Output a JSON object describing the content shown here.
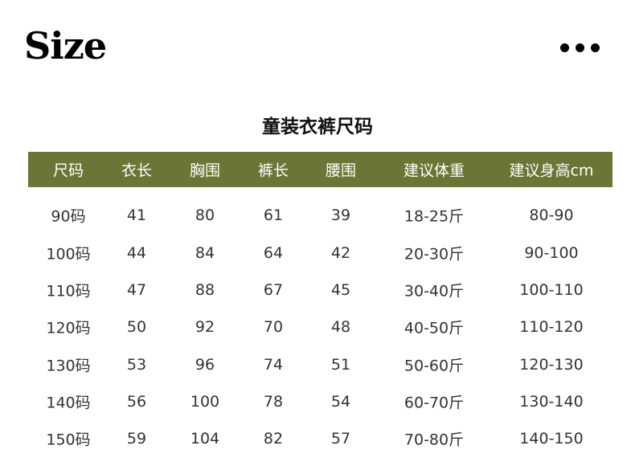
{
  "logo": "Size",
  "menu_icon": "more-horizontal-icon",
  "title": "童装衣裤尺码",
  "header_color": "#6b7535",
  "columns": [
    "尺码",
    "衣长",
    "胸围",
    "裤长",
    "腰围",
    "建议体重",
    "建议身高cm"
  ],
  "rows": [
    [
      "90码",
      "41",
      "80",
      "61",
      "39",
      "18-25斤",
      "80-90"
    ],
    [
      "100码",
      "44",
      "84",
      "64",
      "42",
      "20-30斤",
      "90-100"
    ],
    [
      "110码",
      "47",
      "88",
      "67",
      "45",
      "30-40斤",
      "100-110"
    ],
    [
      "120码",
      "50",
      "92",
      "70",
      "48",
      "40-50斤",
      "110-120"
    ],
    [
      "130码",
      "53",
      "96",
      "74",
      "51",
      "50-60斤",
      "120-130"
    ],
    [
      "140码",
      "56",
      "100",
      "78",
      "54",
      "60-70斤",
      "130-140"
    ],
    [
      "150码",
      "59",
      "104",
      "82",
      "57",
      "70-80斤",
      "140-150"
    ]
  ]
}
